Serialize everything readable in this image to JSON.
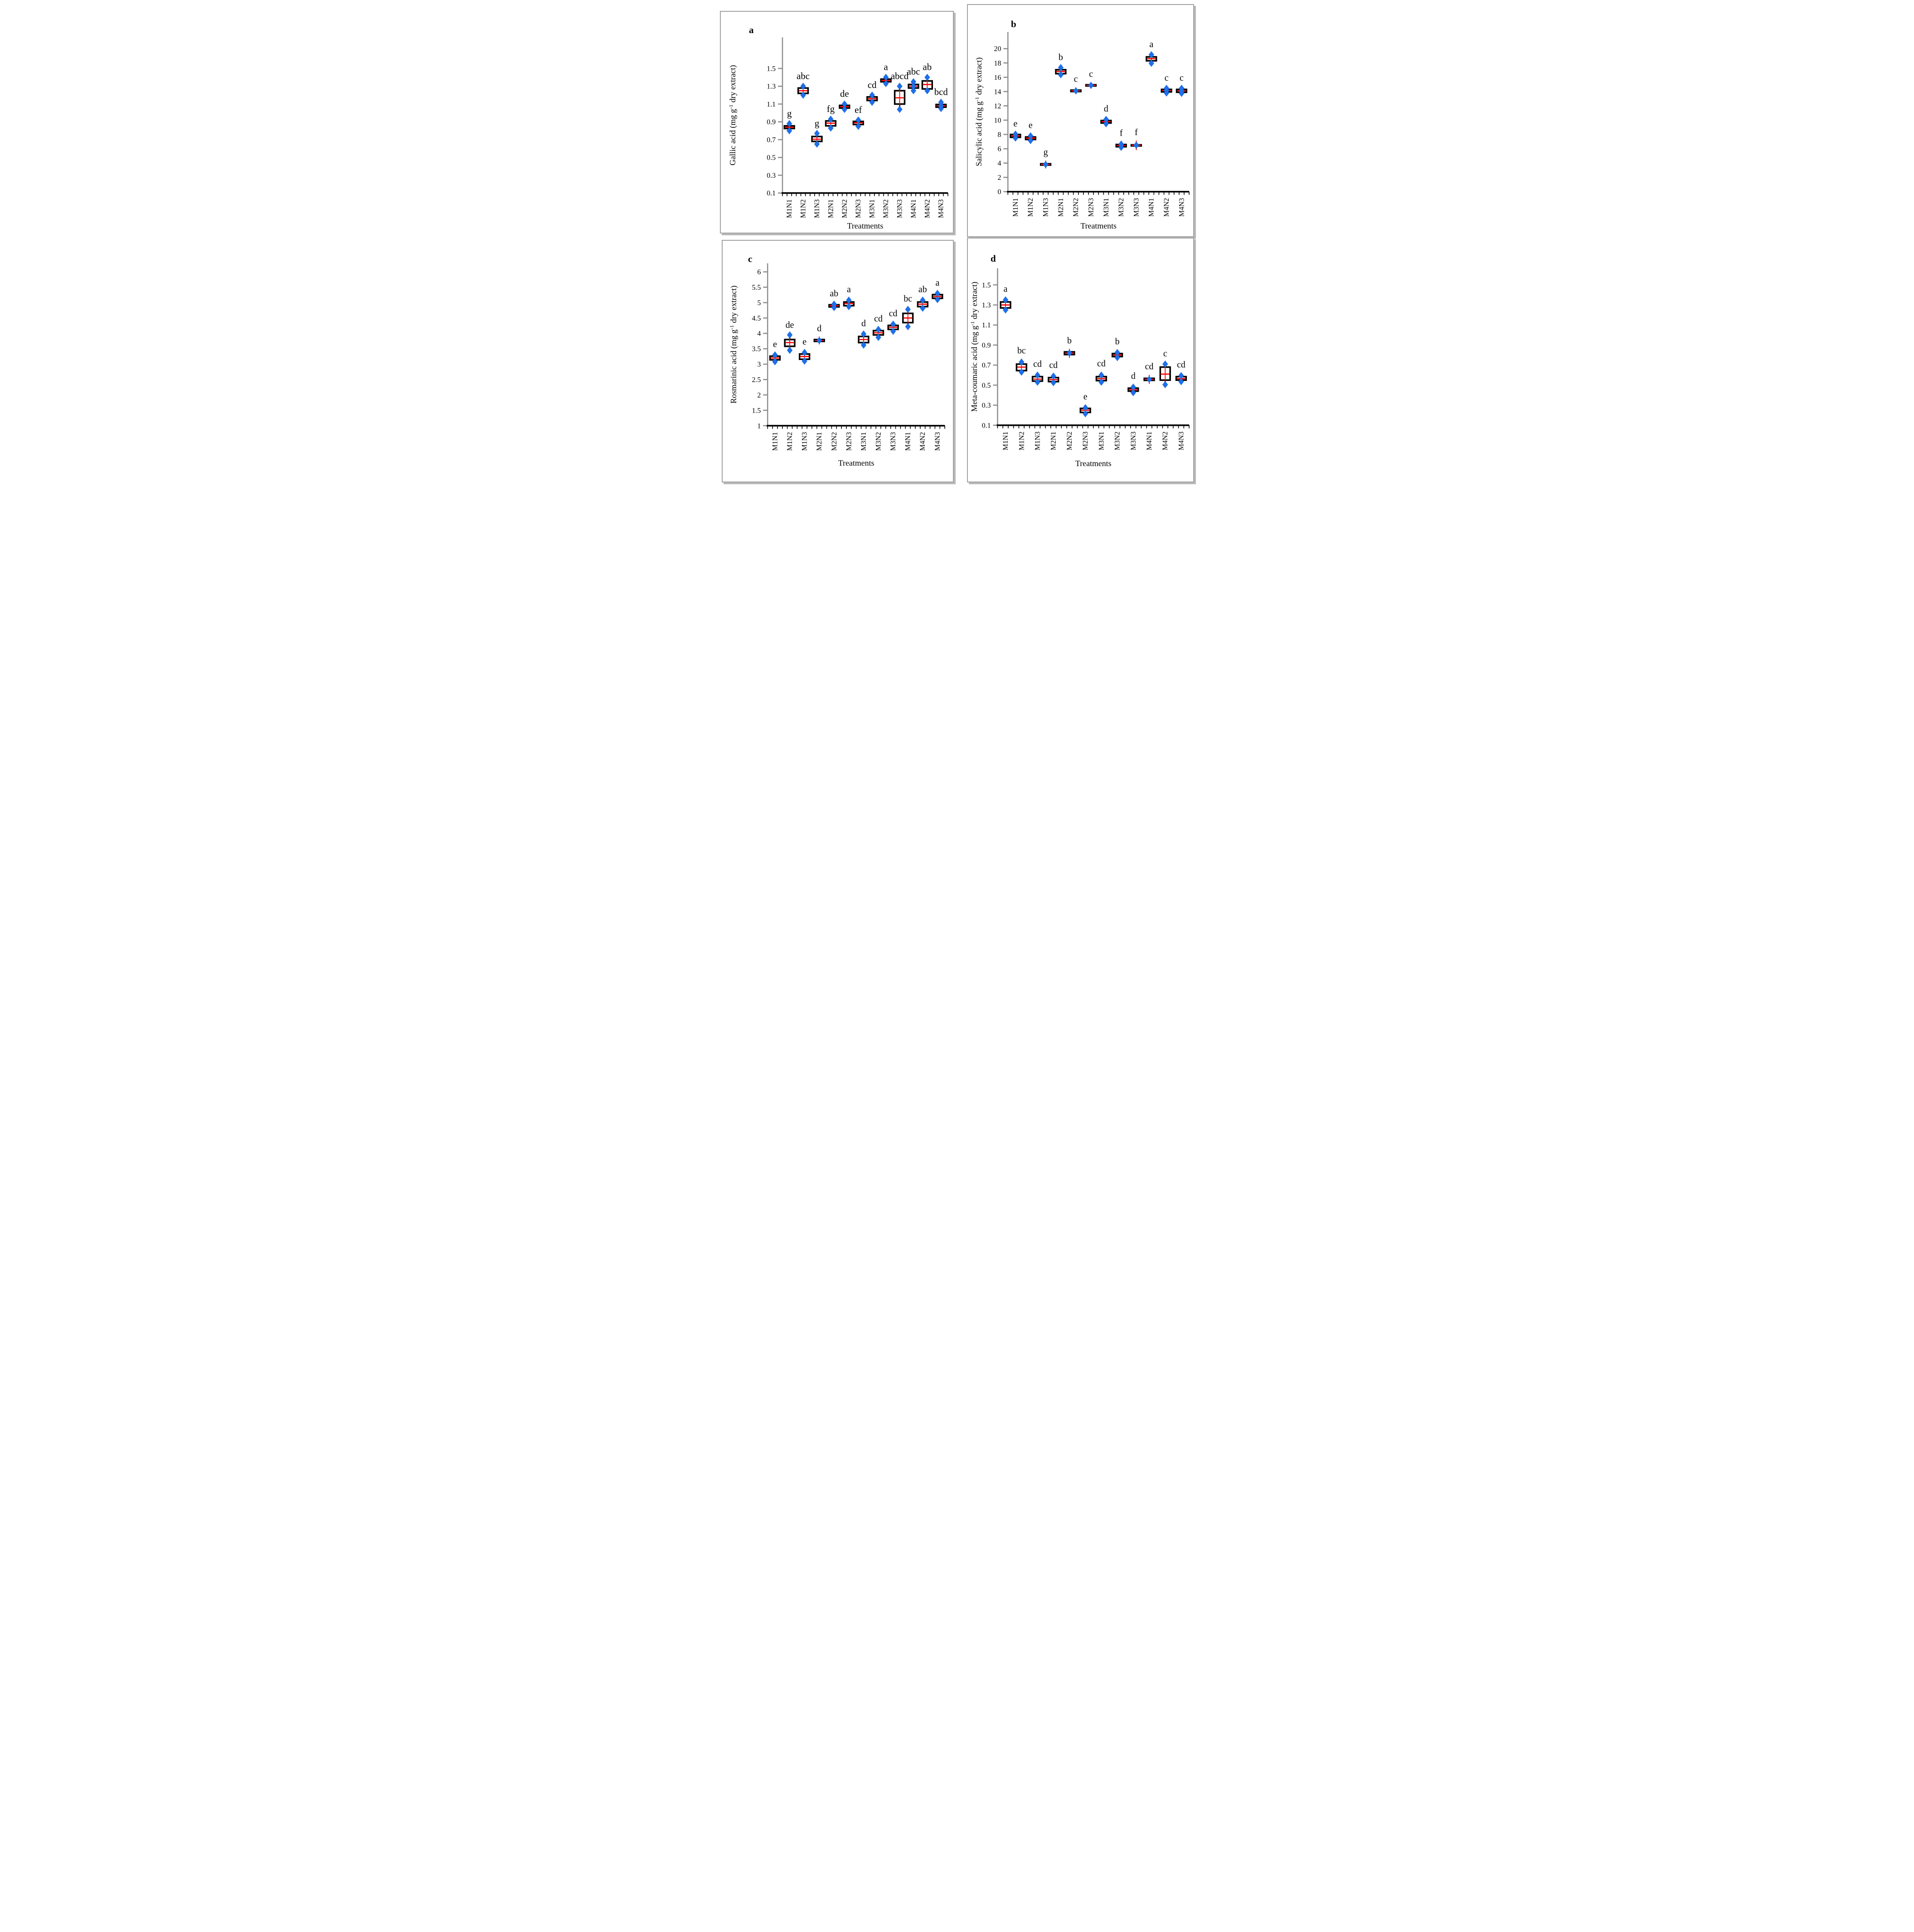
{
  "colors": {
    "box_border": "#000000",
    "median_line": "#ff0000",
    "mean_cross": "#ff0000",
    "data_point": "#1e6fe8",
    "y_axis": "#8c8c8c",
    "x_axis": "#000000",
    "panel_border": "#a3a3a3",
    "text": "#000000"
  },
  "chart_data": [
    {
      "type": "box",
      "panel_label": "a",
      "ylabel_parts": {
        "pre": "Gallic acid (mg g",
        "sup": "-1",
        "post": " dry extract)"
      },
      "xlabel": "Treatments",
      "categories": [
        "M1N1",
        "M1N2",
        "M1N3",
        "M2N1",
        "M2N2",
        "M2N3",
        "M3N1",
        "M3N2",
        "M3N3",
        "M4N1",
        "M4N2",
        "M4N3"
      ],
      "sig_letters": [
        "g",
        "abc",
        "g",
        "fg",
        "de",
        "ef",
        "cd",
        "a",
        "abcd",
        "abc",
        "ab",
        "bcd"
      ],
      "ytick_values": [
        0.1,
        0.3,
        0.5,
        0.7,
        0.9,
        1.1,
        1.3,
        1.5
      ],
      "ytick_labels": [
        "0.1",
        "0.3",
        "0.5",
        "0.7",
        "0.9",
        "1.1",
        "1.3",
        "1.5"
      ],
      "tick_min": 0.1,
      "tick_max": 1.5,
      "ylim": [
        0.1,
        1.72
      ],
      "grid": false,
      "legend": "none",
      "boxes": [
        {
          "lo": 0.8,
          "q1": 0.825,
          "med": 0.84,
          "q3": 0.855,
          "hi": 0.88,
          "points": [
            0.8,
            0.88
          ]
        },
        {
          "lo": 1.2,
          "q1": 1.22,
          "med": 1.25,
          "q3": 1.28,
          "hi": 1.3,
          "points": [
            1.2,
            1.3
          ]
        },
        {
          "lo": 0.65,
          "q1": 0.68,
          "med": 0.705,
          "q3": 0.735,
          "hi": 0.77,
          "points": [
            0.65,
            0.77
          ]
        },
        {
          "lo": 0.83,
          "q1": 0.855,
          "med": 0.885,
          "q3": 0.91,
          "hi": 0.93,
          "points": [
            0.83,
            0.93
          ]
        },
        {
          "lo": 1.04,
          "q1": 1.055,
          "med": 1.07,
          "q3": 1.085,
          "hi": 1.1,
          "points": [
            1.04,
            1.1
          ]
        },
        {
          "lo": 0.85,
          "q1": 0.87,
          "med": 0.89,
          "q3": 0.905,
          "hi": 0.92,
          "points": [
            0.85,
            0.92
          ]
        },
        {
          "lo": 1.12,
          "q1": 1.14,
          "med": 1.16,
          "q3": 1.18,
          "hi": 1.2,
          "points": [
            1.12,
            1.2
          ]
        },
        {
          "lo": 1.33,
          "q1": 1.35,
          "med": 1.365,
          "q3": 1.38,
          "hi": 1.4,
          "points": [
            1.33,
            1.4
          ]
        },
        {
          "lo": 1.04,
          "q1": 1.1,
          "med": 1.17,
          "q3": 1.25,
          "hi": 1.3,
          "points": [
            1.04,
            1.3
          ]
        },
        {
          "lo": 1.25,
          "q1": 1.28,
          "med": 1.3,
          "q3": 1.32,
          "hi": 1.35,
          "points": [
            1.25,
            1.3,
            1.35
          ]
        },
        {
          "lo": 1.25,
          "q1": 1.27,
          "med": 1.32,
          "q3": 1.36,
          "hi": 1.4,
          "points": [
            1.25,
            1.4
          ]
        },
        {
          "lo": 1.05,
          "q1": 1.065,
          "med": 1.08,
          "q3": 1.095,
          "hi": 1.12,
          "points": [
            1.05,
            1.08,
            1.12
          ]
        }
      ]
    },
    {
      "type": "box",
      "panel_label": "b",
      "ylabel_parts": {
        "pre": "Salicylic acid (mg g",
        "sup": "-1",
        "post": " dry extract)"
      },
      "xlabel": "Treatments",
      "categories": [
        "M1N1",
        "M1N2",
        "M1N3",
        "M2N1",
        "M2N2",
        "M2N3",
        "M3N1",
        "M3N2",
        "M3N3",
        "M4N1",
        "M4N2",
        "M4N3"
      ],
      "sig_letters": [
        "e",
        "e",
        "g",
        "b",
        "c",
        "c",
        "d",
        "f",
        "f",
        "a",
        "c",
        "c"
      ],
      "ytick_values": [
        0,
        2,
        4,
        6,
        8,
        10,
        12,
        14,
        16,
        18,
        20
      ],
      "ytick_labels": [
        "0",
        "2",
        "4",
        "6",
        "8",
        "10",
        "12",
        "14",
        "16",
        "18",
        "20"
      ],
      "tick_min": 0,
      "tick_max": 20,
      "ylim": [
        0,
        22.3
      ],
      "grid": false,
      "legend": "none",
      "boxes": [
        {
          "lo": 7.4,
          "q1": 7.6,
          "med": 7.8,
          "q3": 8.0,
          "hi": 8.1,
          "points": [
            7.5,
            8.05
          ]
        },
        {
          "lo": 7.0,
          "q1": 7.3,
          "med": 7.5,
          "q3": 7.65,
          "hi": 7.9,
          "points": [
            7.15,
            7.8
          ]
        },
        {
          "lo": 3.5,
          "q1": 3.72,
          "med": 3.8,
          "q3": 3.9,
          "hi": 4.1,
          "points": [
            3.8
          ]
        },
        {
          "lo": 16.2,
          "q1": 16.5,
          "med": 16.8,
          "q3": 17.05,
          "hi": 17.4,
          "points": [
            16.35,
            17.35
          ]
        },
        {
          "lo": 13.9,
          "q1": 14.0,
          "med": 14.1,
          "q3": 14.2,
          "hi": 14.35,
          "points": [
            14.1
          ]
        },
        {
          "lo": 14.65,
          "q1": 14.78,
          "med": 14.87,
          "q3": 14.95,
          "hi": 15.05,
          "points": [
            14.87
          ]
        },
        {
          "lo": 9.3,
          "q1": 9.6,
          "med": 9.8,
          "q3": 9.95,
          "hi": 10.2,
          "points": [
            9.5,
            10.1
          ]
        },
        {
          "lo": 6.0,
          "q1": 6.28,
          "med": 6.45,
          "q3": 6.6,
          "hi": 6.8,
          "points": [
            6.2,
            6.65
          ]
        },
        {
          "lo": 6.05,
          "q1": 6.4,
          "med": 6.5,
          "q3": 6.55,
          "hi": 6.9,
          "points": [
            6.5
          ]
        },
        {
          "lo": 17.9,
          "q1": 18.3,
          "med": 18.6,
          "q3": 18.85,
          "hi": 19.2,
          "points": [
            17.95,
            19.15
          ]
        },
        {
          "lo": 13.7,
          "q1": 13.95,
          "med": 14.15,
          "q3": 14.3,
          "hi": 14.5,
          "points": [
            13.8,
            14.15,
            14.45
          ]
        },
        {
          "lo": 13.6,
          "q1": 13.9,
          "med": 14.1,
          "q3": 14.3,
          "hi": 14.5,
          "points": [
            13.75,
            14.1,
            14.45
          ]
        }
      ]
    },
    {
      "type": "box",
      "panel_label": "c",
      "ylabel_parts": {
        "pre": "Rosmarinic acid (mg g",
        "sup": "-1",
        "post": " dry extract)"
      },
      "xlabel": "Treatments",
      "categories": [
        "M1N1",
        "M1N2",
        "M1N3",
        "M2N1",
        "M2N2",
        "M2N3",
        "M3N1",
        "M3N2",
        "M3N3",
        "M4N1",
        "M4N2",
        "M4N3"
      ],
      "sig_letters": [
        "e",
        "de",
        "e",
        "d",
        "ab",
        "a",
        "d",
        "cd",
        "cd",
        "bc",
        "ab",
        "a"
      ],
      "ytick_values": [
        1,
        1.5,
        2,
        2.5,
        3,
        3.5,
        4,
        4.5,
        5,
        5.5,
        6
      ],
      "ytick_labels": [
        "1",
        "1.5",
        "2",
        "2.5",
        "3",
        "3.5",
        "4",
        "4.5",
        "5",
        "5.5",
        "6"
      ],
      "tick_min": 1,
      "tick_max": 6,
      "ylim": [
        1,
        6.28
      ],
      "grid": false,
      "legend": "none",
      "boxes": [
        {
          "lo": 3.05,
          "q1": 3.14,
          "med": 3.2,
          "q3": 3.26,
          "hi": 3.32,
          "points": [
            3.08,
            3.3
          ]
        },
        {
          "lo": 3.45,
          "q1": 3.58,
          "med": 3.7,
          "q3": 3.8,
          "hi": 3.95,
          "points": [
            3.45,
            3.95
          ]
        },
        {
          "lo": 3.08,
          "q1": 3.16,
          "med": 3.25,
          "q3": 3.33,
          "hi": 3.4,
          "points": [
            3.1,
            3.38
          ]
        },
        {
          "lo": 3.7,
          "q1": 3.74,
          "med": 3.77,
          "q3": 3.8,
          "hi": 3.84,
          "points": [
            3.77
          ]
        },
        {
          "lo": 4.82,
          "q1": 4.86,
          "med": 4.9,
          "q3": 4.93,
          "hi": 4.97,
          "points": [
            4.84,
            4.95
          ]
        },
        {
          "lo": 4.85,
          "q1": 4.9,
          "med": 4.97,
          "q3": 5.02,
          "hi": 5.1,
          "points": [
            4.87,
            5.08
          ]
        },
        {
          "lo": 3.6,
          "q1": 3.7,
          "med": 3.8,
          "q3": 3.9,
          "hi": 4.0,
          "points": [
            3.62,
            3.98
          ]
        },
        {
          "lo": 3.85,
          "q1": 3.95,
          "med": 4.02,
          "q3": 4.09,
          "hi": 4.15,
          "points": [
            3.87,
            4.13
          ]
        },
        {
          "lo": 4.05,
          "q1": 4.13,
          "med": 4.2,
          "q3": 4.26,
          "hi": 4.32,
          "points": [
            4.07,
            4.3
          ]
        },
        {
          "lo": 4.2,
          "q1": 4.35,
          "med": 4.5,
          "q3": 4.65,
          "hi": 4.8,
          "points": [
            4.22,
            4.78
          ]
        },
        {
          "lo": 4.8,
          "q1": 4.87,
          "med": 4.95,
          "q3": 5.02,
          "hi": 5.1,
          "points": [
            4.82,
            5.08
          ]
        },
        {
          "lo": 5.08,
          "q1": 5.14,
          "med": 5.2,
          "q3": 5.26,
          "hi": 5.32,
          "points": [
            5.1,
            5.3
          ]
        }
      ]
    },
    {
      "type": "box",
      "panel_label": "d",
      "ylabel_parts": {
        "pre": "Meta-coumaric acid (mg g",
        "sup": "-1",
        "post": " dry extract)"
      },
      "xlabel": "Treatments",
      "categories": [
        "M1N1",
        "M1N2",
        "M1N3",
        "M2N1",
        "M2N2",
        "M2N3",
        "M3N1",
        "M3N2",
        "M3N3",
        "M4N1",
        "M4N2",
        "M4N3"
      ],
      "sig_letters": [
        "a",
        "bc",
        "cd",
        "cd",
        "b",
        "e",
        "cd",
        "b",
        "d",
        "cd",
        "c",
        "cd"
      ],
      "ytick_values": [
        0.1,
        0.3,
        0.5,
        0.7,
        0.9,
        1.1,
        1.3,
        1.5
      ],
      "ytick_labels": [
        "0.1",
        "0.3",
        "0.5",
        "0.7",
        "0.9",
        "1.1",
        "1.3",
        "1.5"
      ],
      "tick_min": 0.1,
      "tick_max": 1.5,
      "ylim": [
        0.1,
        1.68
      ],
      "grid": false,
      "legend": "none",
      "boxes": [
        {
          "lo": 1.24,
          "q1": 1.27,
          "med": 1.3,
          "q3": 1.33,
          "hi": 1.36,
          "points": [
            1.25,
            1.35
          ]
        },
        {
          "lo": 0.62,
          "q1": 0.645,
          "med": 0.68,
          "q3": 0.71,
          "hi": 0.745,
          "points": [
            0.63,
            0.73
          ]
        },
        {
          "lo": 0.52,
          "q1": 0.54,
          "med": 0.56,
          "q3": 0.585,
          "hi": 0.61,
          "points": [
            0.53,
            0.6
          ]
        },
        {
          "lo": 0.515,
          "q1": 0.535,
          "med": 0.555,
          "q3": 0.575,
          "hi": 0.6,
          "points": [
            0.525,
            0.59
          ]
        },
        {
          "lo": 0.79,
          "q1": 0.805,
          "med": 0.82,
          "q3": 0.832,
          "hi": 0.845,
          "points": [
            0.82
          ]
        },
        {
          "lo": 0.205,
          "q1": 0.228,
          "med": 0.25,
          "q3": 0.268,
          "hi": 0.285,
          "points": [
            0.215,
            0.275
          ]
        },
        {
          "lo": 0.52,
          "q1": 0.545,
          "med": 0.565,
          "q3": 0.585,
          "hi": 0.615,
          "points": [
            0.53,
            0.6
          ]
        },
        {
          "lo": 0.765,
          "q1": 0.785,
          "med": 0.8,
          "q3": 0.815,
          "hi": 0.835,
          "points": [
            0.775,
            0.825
          ]
        },
        {
          "lo": 0.415,
          "q1": 0.44,
          "med": 0.455,
          "q3": 0.47,
          "hi": 0.49,
          "points": [
            0.425,
            0.48
          ]
        },
        {
          "lo": 0.53,
          "q1": 0.548,
          "med": 0.558,
          "q3": 0.568,
          "hi": 0.585,
          "points": [
            0.558
          ]
        },
        {
          "lo": 0.5,
          "q1": 0.55,
          "med": 0.61,
          "q3": 0.68,
          "hi": 0.715,
          "points": [
            0.505,
            0.71
          ]
        },
        {
          "lo": 0.525,
          "q1": 0.55,
          "med": 0.565,
          "q3": 0.585,
          "hi": 0.605,
          "points": [
            0.535,
            0.595
          ]
        }
      ]
    }
  ]
}
